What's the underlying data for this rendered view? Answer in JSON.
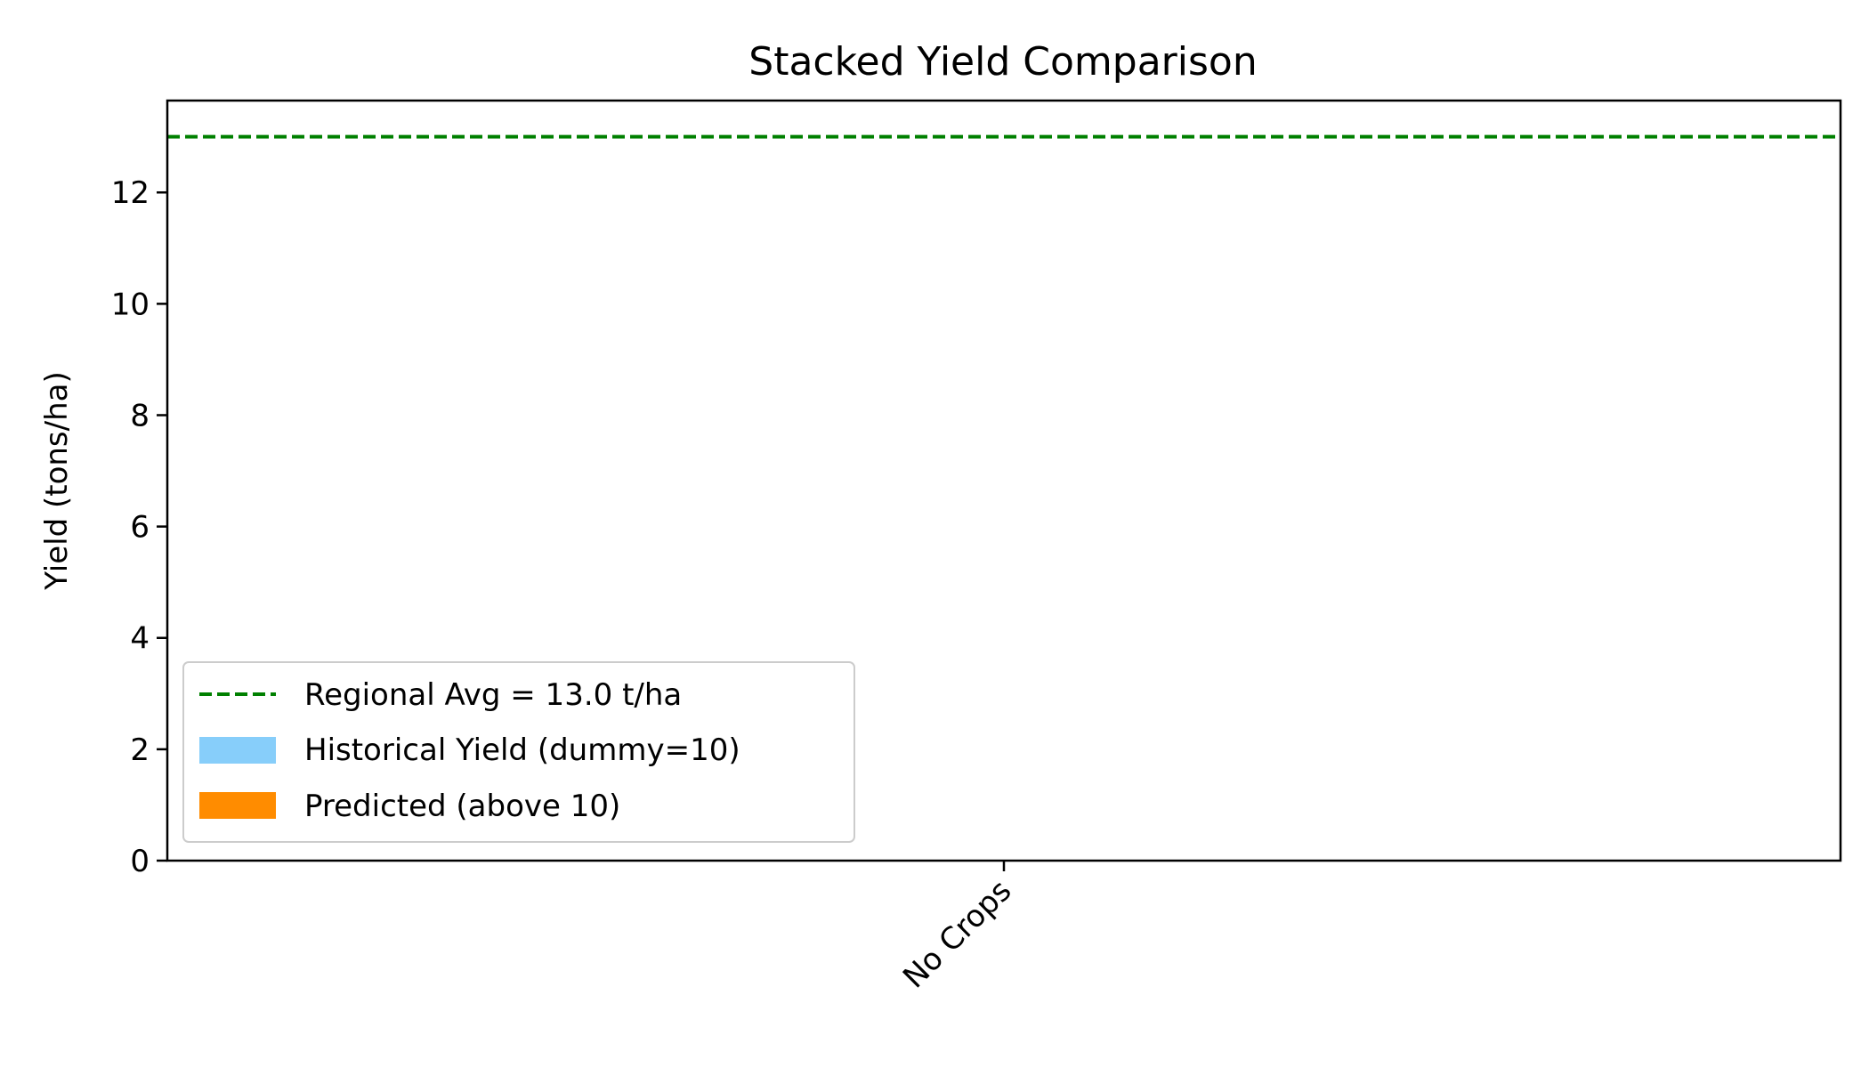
{
  "chart_data": {
    "type": "bar",
    "title": "Stacked Yield Comparison",
    "xlabel": "",
    "ylabel": "Yield (tons/ha)",
    "categories": [
      "No Crops"
    ],
    "series": [
      {
        "name": "Historical Yield (dummy=10)",
        "values": [
          0
        ],
        "color": "#87CEFA"
      },
      {
        "name": "Predicted (above 10)",
        "values": [
          0
        ],
        "color": "#FF8C00"
      }
    ],
    "reference_line": {
      "label": "Regional Avg = 13.0 t/ha",
      "value": 13.0,
      "color": "#008000",
      "style": "dashed"
    },
    "ylim": [
      0,
      13.65
    ],
    "yticks": [
      0,
      2,
      4,
      6,
      8,
      10,
      12
    ],
    "grid": false,
    "legend_position": "lower-left"
  }
}
